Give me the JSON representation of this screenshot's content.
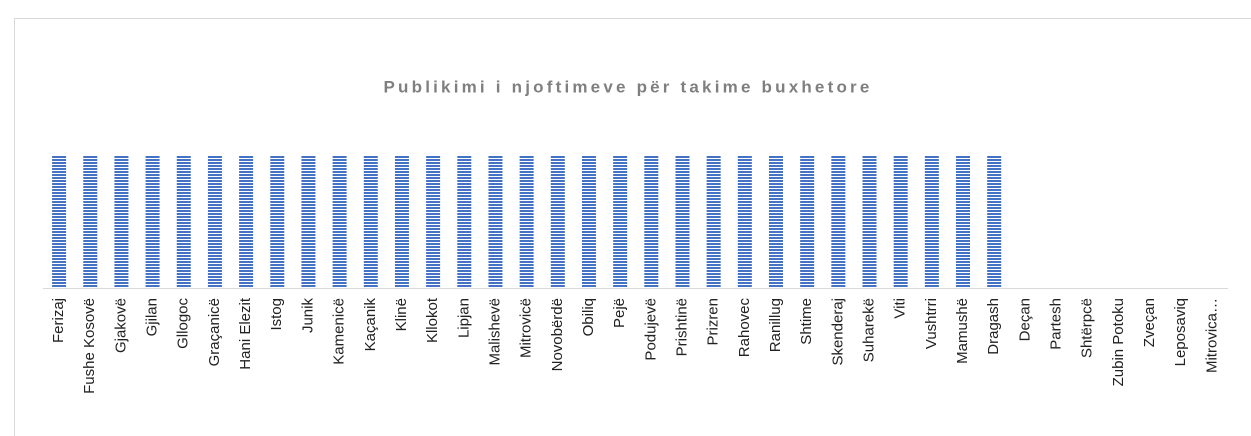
{
  "chart_data": {
    "type": "bar",
    "title": "Publikimi i njoftimeve për takime buxhetore",
    "categories": [
      "Ferizaj",
      "Fushe Kosovë",
      "Gjakovë",
      "Gjilan",
      "Gllogoc",
      "Graçanicë",
      "Hani Elezit",
      "Istog",
      "Junik",
      "Kamenicë",
      "Kaçanik",
      "Klinë",
      "Kllokot",
      "Lipjan",
      "Malishevë",
      "Mitrovicë",
      "Novobërdë",
      "Obiliq",
      "Pejë",
      "Podujevë",
      "Prishtinë",
      "Prizren",
      "Rahovec",
      "Ranillug",
      "Shtime",
      "Skenderaj",
      "Suharekë",
      "Viti",
      "Vushtrri",
      "Mamushë",
      "Dragash",
      "Deçan",
      "Partesh",
      "Shtërpcë",
      "Zubin Potoku",
      "Zveçan",
      "Leposaviq",
      "Mitrovica…"
    ],
    "values": [
      1,
      1,
      1,
      1,
      1,
      1,
      1,
      1,
      1,
      1,
      1,
      1,
      1,
      1,
      1,
      1,
      1,
      1,
      1,
      1,
      1,
      1,
      1,
      1,
      1,
      1,
      1,
      1,
      1,
      1,
      1,
      0,
      0,
      0,
      0,
      0,
      0,
      0
    ],
    "color": "#4472c4"
  }
}
